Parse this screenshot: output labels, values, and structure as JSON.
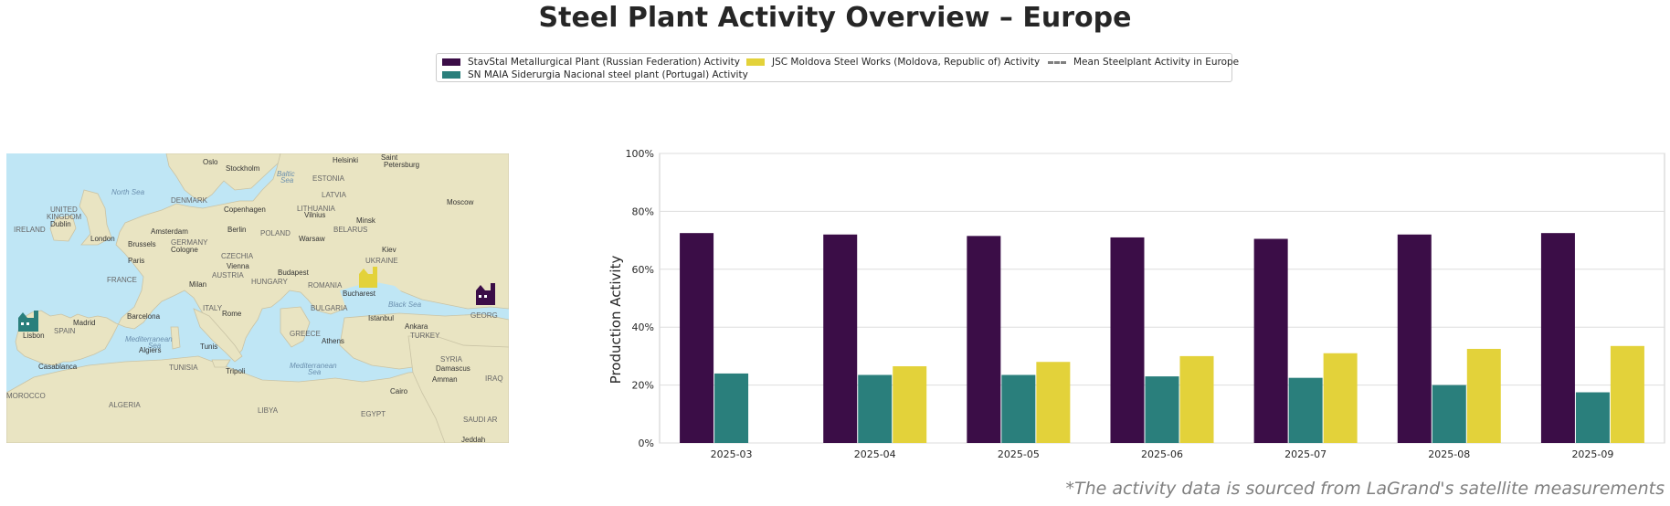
{
  "title": "Steel Plant Activity Overview – Europe",
  "legend": {
    "items": [
      {
        "label": "StavStal Metallurgical Plant (Russian Federation) Activity",
        "color": "#3b0d47",
        "kind": "bar"
      },
      {
        "label": "SN MAIA Siderurgia Nacional steel plant (Portugal) Activity",
        "color": "#2a7f7c",
        "kind": "bar"
      },
      {
        "label": "JSC Moldova Steel Works (Moldova, Republic of) Activity",
        "color": "#e3d23a",
        "kind": "bar"
      },
      {
        "label": "Mean Steelplant Activity in Europe",
        "color": "#808080",
        "kind": "dash"
      }
    ]
  },
  "map": {
    "labels": {
      "oslo": "Oslo",
      "stockholm": "Stockholm",
      "helsinki": "Helsinki",
      "saint": "Saint",
      "petersburg": "Petersburg",
      "baltic1": "Baltic",
      "baltic2": "Sea",
      "estonia": "ESTONIA",
      "northsea": "North Sea",
      "denmark": "DENMARK",
      "latvia": "LATVIA",
      "moscow": "Moscow",
      "united": "UNITED",
      "kingdom": "KINGDOM",
      "copenhagen": "Copenhagen",
      "lithuania": "LITHUANIA",
      "vilnius": "Vilnius",
      "dublin": "Dublin",
      "minsk": "Minsk",
      "ireland": "IRELAND",
      "amsterdam": "Amsterdam",
      "berlin": "Berlin",
      "belarus": "BELARUS",
      "london": "London",
      "poland": "POLAND",
      "warsaw": "Warsaw",
      "brussels": "Brussels",
      "germany": "GERMANY",
      "cologne": "Cologne",
      "kiev": "Kiev",
      "czechia": "CZECHIA",
      "ukraine": "UKRAINE",
      "paris": "Paris",
      "vienna": "Vienna",
      "austria": "AUSTRIA",
      "budapest": "Budapest",
      "france": "FRANCE",
      "hungary": "HUNGARY",
      "milan": "Milan",
      "romania": "ROMANIA",
      "bucharest": "Bucharest",
      "blacksea": "Black Sea",
      "italy": "ITALY",
      "bulgaria": "BULGARIA",
      "georgia": "GEORG",
      "madrid": "Madrid",
      "barcelona": "Barcelona",
      "rome": "Rome",
      "istanbul": "Istanbul",
      "ankara": "Ankara",
      "lisbon": "Lisbon",
      "spain": "SPAIN",
      "greece": "GREECE",
      "turkey": "TURKEY",
      "athens": "Athens",
      "med1": "Mediterranean",
      "med1b": "Sea",
      "tunis": "Tunis",
      "algiers": "Algiers",
      "syria": "SYRIA",
      "casablanca": "Casablanca",
      "tunisia": "TUNISIA",
      "tripoli": "Tripoli",
      "med2": "Mediterranean",
      "med2b": "Sea",
      "damascus": "Damascus",
      "amman": "Amman",
      "iraq": "IRAQ",
      "morocco": "MOROCCO",
      "algeria": "ALGERIA",
      "cairo": "Cairo",
      "libya": "LIBYA",
      "egypt": "EGYPT",
      "saudi": "SAUDI AR",
      "jeddah": "Jeddah"
    }
  },
  "chart_data": {
    "type": "bar",
    "categories": [
      "2025-03",
      "2025-04",
      "2025-05",
      "2025-06",
      "2025-07",
      "2025-08",
      "2025-09"
    ],
    "series": [
      {
        "name": "StavStal Metallurgical Plant (Russian Federation) Activity",
        "color": "#3b0d47",
        "values": [
          72.5,
          72,
          71.5,
          71,
          70.5,
          72,
          72.5
        ]
      },
      {
        "name": "SN MAIA Siderurgia Nacional steel plant (Portugal) Activity",
        "color": "#2a7f7c",
        "values": [
          24,
          23.5,
          23.5,
          23,
          22.5,
          20,
          17.5
        ]
      },
      {
        "name": "JSC Moldova Steel Works (Moldova, Republic of) Activity",
        "color": "#e3d23a",
        "values": [
          null,
          26.5,
          28,
          30,
          31,
          32.5,
          33.5
        ]
      }
    ],
    "ylabel": "Production Activity",
    "ylim": [
      0,
      100
    ],
    "yticks": [
      "0%",
      "20%",
      "40%",
      "60%",
      "80%",
      "100%"
    ],
    "grid": true
  },
  "footer": {
    "source": "*The activity data is sourced from LaGrand's satellite measurements"
  }
}
